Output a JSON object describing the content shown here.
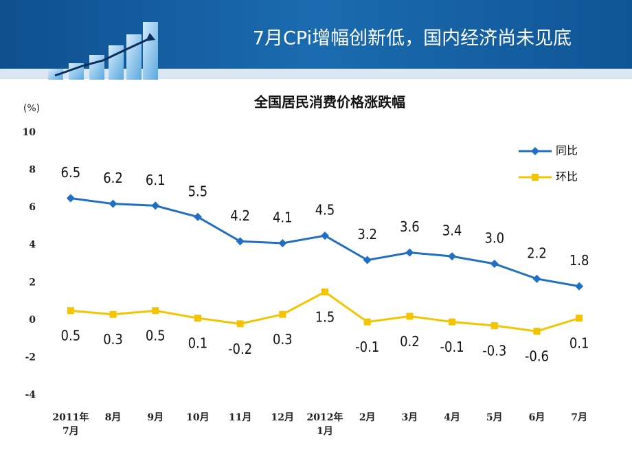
{
  "header": {
    "title": "7月CPi增幅创新低，国内经济尚未见底"
  },
  "chart_data": {
    "type": "line",
    "title": "全国居民消费价格涨跌幅",
    "y_unit": "(%)",
    "categories": [
      "2011年\n7月",
      "8月",
      "9月",
      "10月",
      "11月",
      "12月",
      "2012年\n1月",
      "2月",
      "3月",
      "4月",
      "5月",
      "6月",
      "7月"
    ],
    "series": [
      {
        "name": "同比",
        "color": "#1f6fc5",
        "marker": "diamond",
        "values": [
          6.5,
          6.2,
          6.1,
          5.5,
          4.2,
          4.1,
          4.5,
          3.2,
          3.6,
          3.4,
          3.0,
          2.2,
          1.8
        ],
        "value_labels": [
          "6.5",
          "6.2",
          "6.1",
          "5.5",
          "4.2",
          "4.1",
          "4.5",
          "3.2",
          "3.6",
          "3.4",
          "3.0",
          "2.2",
          "1.8"
        ]
      },
      {
        "name": "环比",
        "color": "#f5c400",
        "marker": "square",
        "values": [
          0.5,
          0.3,
          0.5,
          0.1,
          -0.2,
          0.3,
          1.5,
          -0.1,
          0.2,
          -0.1,
          -0.3,
          -0.6,
          0.1
        ],
        "value_labels": [
          "0.5",
          "0.3",
          "0.5",
          "0.1",
          "-0.2",
          "0.3",
          "1.5",
          "-0.1",
          "0.2",
          "-0.1",
          "-0.3",
          "-0.6",
          "0.1"
        ]
      }
    ],
    "ylim": [
      -4,
      10
    ],
    "yticks": [
      -4,
      -2,
      0,
      2,
      4,
      6,
      8,
      10
    ],
    "grid": false,
    "legend": "top-right"
  }
}
